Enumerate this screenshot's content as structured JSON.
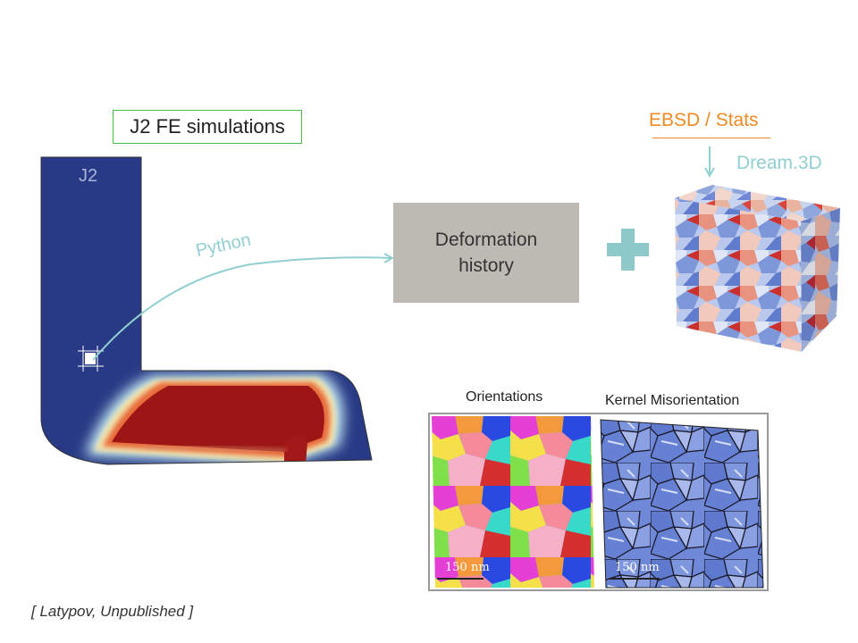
{
  "fe_title": "J2 FE simulations",
  "fe_domain_label": "J2",
  "arrow_label": "Python",
  "center_box": {
    "line1": "Deformation",
    "line2": "history"
  },
  "ebsd_label": "EBSD / Stats",
  "dream_label": "Dream.3D",
  "panels": {
    "left_title": "Orientations",
    "right_title": "Kernel Misorientation",
    "scale_text": "150 nm"
  },
  "citation": "[ Latypov, Unpublished ]",
  "colors": {
    "fe_blue": "#283a85",
    "fe_red": "#9c1616",
    "box_gray": "#bdbab4",
    "arrow_teal": "#92cfd0",
    "accent_orange": "#f08a24",
    "title_border_green": "#49b84a",
    "plus_teal": "#8ec9c9"
  }
}
